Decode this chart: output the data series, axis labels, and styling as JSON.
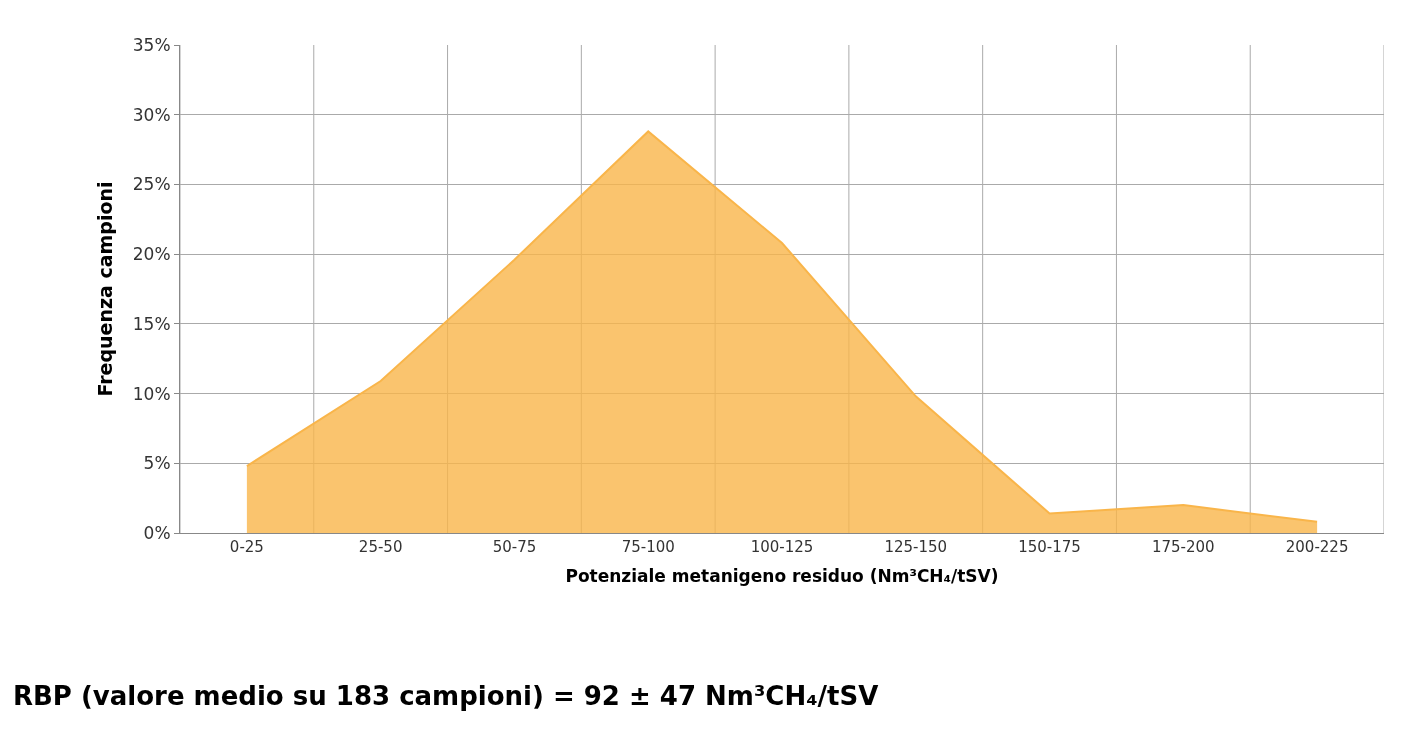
{
  "chart_data": {
    "type": "area",
    "xlabel": "Potenziale metanigeno residuo (Nm³CH₄/tSV)",
    "ylabel": "Frequenza campioni",
    "categories": [
      "0-25",
      "25-50",
      "50-75",
      "75-100",
      "100-125",
      "125-150",
      "150-175",
      "175-200",
      "200-225"
    ],
    "series": [
      {
        "color": "#f9b54a",
        "values": [
          4.8,
          10.9,
          19.6,
          28.8,
          20.8,
          9.8,
          1.4,
          2.0,
          0.8
        ]
      }
    ],
    "ylim": [
      0,
      35
    ],
    "yticks": [
      {
        "value": 0,
        "label": "0%"
      },
      {
        "value": 5,
        "label": "5%"
      },
      {
        "value": 10,
        "label": "10%"
      },
      {
        "value": 15,
        "label": "15%"
      },
      {
        "value": 20,
        "label": "20%"
      },
      {
        "value": 25,
        "label": "25%"
      },
      {
        "value": 30,
        "label": "30%"
      },
      {
        "value": 35,
        "label": "35%"
      }
    ],
    "grid": true,
    "annotations": [
      "RBP (valore medio su 183 campioni) = 92 ± 47 Nm³CH₄/tSV"
    ]
  }
}
